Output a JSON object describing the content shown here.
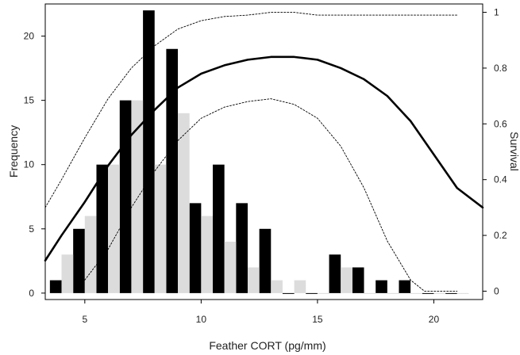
{
  "chart_data": {
    "type": "bar",
    "title": "",
    "xlabel": "Feather CORT (pg/mm)",
    "ylabel": "Frequency",
    "y2label": "Survival",
    "xlim": [
      3.3,
      22.1
    ],
    "ylim": [
      -0.5,
      22.5
    ],
    "y2lim": [
      -0.03,
      1.03
    ],
    "xticks": [
      5,
      10,
      15,
      20
    ],
    "yticks": [
      0,
      5,
      10,
      15,
      20
    ],
    "y2ticks": [
      0,
      0.2,
      0.4,
      0.6,
      0.8,
      1
    ],
    "y2ticklabels": [
      "0",
      "0.2",
      "0.4",
      "0.6",
      "0.8",
      "1"
    ],
    "bar_width": 0.5,
    "series": [
      {
        "color": "#000000",
        "x": [
          3.75,
          4.75,
          5.75,
          6.75,
          7.75,
          8.75,
          9.75,
          10.75,
          11.75,
          12.75,
          13.75,
          14.75,
          15.75,
          16.75,
          17.75,
          18.75,
          19.75,
          20.75
        ],
        "values": [
          1,
          5,
          10,
          15,
          22,
          19,
          7,
          10,
          7,
          5,
          0,
          0,
          3,
          2,
          1,
          1,
          0,
          0
        ]
      },
      {
        "color": "#dcdcdc",
        "x": [
          4.25,
          5.25,
          6.25,
          7.25,
          8.25,
          9.25,
          10.25,
          11.25,
          12.25,
          13.25,
          14.25,
          15.25,
          16.25,
          17.25,
          18.25,
          19.25,
          20.25,
          21.25
        ],
        "values": [
          3,
          6,
          10,
          15,
          10,
          14,
          6,
          4,
          2,
          1,
          1,
          0,
          2,
          0,
          0,
          0,
          0,
          0
        ]
      }
    ],
    "curves": [
      {
        "style": "solid",
        "x": [
          3.3,
          4,
          5,
          6,
          7,
          8,
          9,
          10,
          11,
          12,
          13,
          14,
          15,
          16,
          17,
          18,
          19,
          20,
          21,
          22.1
        ],
        "y": [
          0.11,
          0.2,
          0.32,
          0.45,
          0.56,
          0.65,
          0.73,
          0.78,
          0.81,
          0.83,
          0.84,
          0.84,
          0.83,
          0.8,
          0.76,
          0.7,
          0.61,
          0.49,
          0.37,
          0.3
        ]
      },
      {
        "style": "dotted",
        "x": [
          3.3,
          4,
          5,
          6,
          7,
          8,
          9,
          10,
          11,
          12,
          13,
          13.5,
          14,
          15,
          16,
          17,
          18,
          19,
          19.6,
          20,
          21
        ],
        "y": [
          0.3,
          0.4,
          0.55,
          0.69,
          0.8,
          0.88,
          0.94,
          0.97,
          0.985,
          0.99,
          1.0,
          1.0,
          1.0,
          0.99,
          0.99,
          0.99,
          0.99,
          0.99,
          0.99,
          0.99,
          0.99
        ]
      },
      {
        "style": "dotted",
        "x": [
          5,
          6,
          7,
          8,
          9,
          10,
          11,
          12,
          13,
          14,
          15,
          16,
          17,
          18,
          19,
          19.6,
          20,
          21
        ],
        "y": [
          0.04,
          0.15,
          0.3,
          0.43,
          0.54,
          0.62,
          0.66,
          0.68,
          0.69,
          0.67,
          0.62,
          0.52,
          0.37,
          0.18,
          0.04,
          0.0,
          0.0,
          0.0
        ]
      }
    ]
  }
}
